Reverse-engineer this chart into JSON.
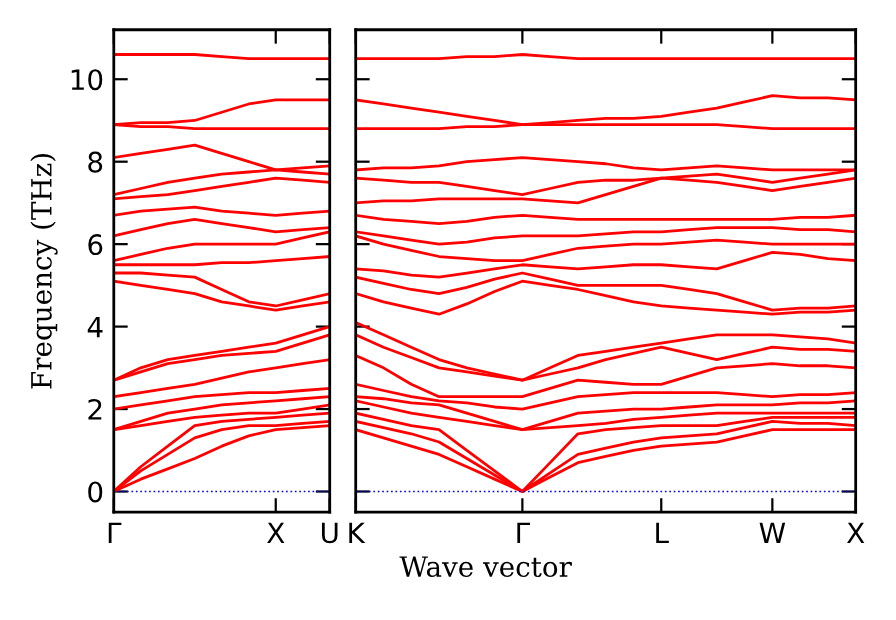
{
  "chart_data": [
    {
      "type": "line",
      "ylabel": "Frequency (THz)",
      "categories": [
        "Γ",
        null,
        null,
        null,
        null,
        null,
        "X",
        null,
        "U"
      ],
      "ylim": [
        -0.5,
        11.2
      ],
      "yticks": [
        0,
        2,
        4,
        6,
        8,
        10
      ],
      "grid": false,
      "marker": "none",
      "line_style": "solid",
      "ref_lines": [
        {
          "axis": "y",
          "value": 0,
          "color": "#0000ff",
          "line_style": "dotted"
        }
      ],
      "series": [
        {
          "color": "#ff0000",
          "values": [
            0,
            0.3,
            0.55,
            0.8,
            1.1,
            1.35,
            1.5,
            1.55,
            1.6
          ]
        },
        {
          "color": "#ff0000",
          "values": [
            0,
            0.5,
            0.9,
            1.3,
            1.5,
            1.6,
            1.6,
            1.65,
            1.7
          ]
        },
        {
          "color": "#ff0000",
          "values": [
            0,
            0.6,
            1.1,
            1.6,
            1.7,
            1.75,
            1.8,
            1.85,
            1.9
          ]
        },
        {
          "color": "#ff0000",
          "values": [
            1.5,
            1.6,
            1.7,
            1.8,
            1.85,
            1.9,
            1.9,
            2.0,
            2.1
          ]
        },
        {
          "color": "#ff0000",
          "values": [
            1.5,
            1.7,
            1.9,
            2.0,
            2.1,
            2.15,
            2.2,
            2.25,
            2.3
          ]
        },
        {
          "color": "#ff0000",
          "values": [
            2.0,
            2.1,
            2.2,
            2.3,
            2.35,
            2.4,
            2.4,
            2.45,
            2.5
          ]
        },
        {
          "color": "#ff0000",
          "values": [
            2.3,
            2.4,
            2.5,
            2.6,
            2.75,
            2.9,
            3.0,
            3.1,
            3.2
          ]
        },
        {
          "color": "#ff0000",
          "values": [
            2.7,
            2.9,
            3.1,
            3.2,
            3.3,
            3.35,
            3.4,
            3.6,
            3.8
          ]
        },
        {
          "color": "#ff0000",
          "values": [
            2.7,
            3.0,
            3.2,
            3.3,
            3.4,
            3.5,
            3.6,
            3.8,
            4.0
          ]
        },
        {
          "color": "#ff0000",
          "values": [
            5.1,
            5.0,
            4.9,
            4.8,
            4.6,
            4.5,
            4.4,
            4.5,
            4.6
          ]
        },
        {
          "color": "#ff0000",
          "values": [
            5.3,
            5.3,
            5.25,
            5.2,
            4.9,
            4.6,
            4.5,
            4.65,
            4.8
          ]
        },
        {
          "color": "#ff0000",
          "values": [
            5.5,
            5.5,
            5.5,
            5.5,
            5.55,
            5.55,
            5.6,
            5.65,
            5.7
          ]
        },
        {
          "color": "#ff0000",
          "values": [
            5.6,
            5.75,
            5.9,
            6.0,
            6.0,
            6.0,
            6.0,
            6.15,
            6.3
          ]
        },
        {
          "color": "#ff0000",
          "values": [
            6.2,
            6.35,
            6.5,
            6.6,
            6.5,
            6.4,
            6.3,
            6.35,
            6.4
          ]
        },
        {
          "color": "#ff0000",
          "values": [
            6.7,
            6.8,
            6.85,
            6.9,
            6.8,
            6.75,
            6.7,
            6.75,
            6.8
          ]
        },
        {
          "color": "#ff0000",
          "values": [
            7.1,
            7.15,
            7.2,
            7.3,
            7.4,
            7.5,
            7.6,
            7.55,
            7.5
          ]
        },
        {
          "color": "#ff0000",
          "values": [
            7.2,
            7.35,
            7.5,
            7.6,
            7.7,
            7.75,
            7.8,
            7.75,
            7.7
          ]
        },
        {
          "color": "#ff0000",
          "values": [
            8.1,
            8.2,
            8.3,
            8.4,
            8.2,
            8.0,
            7.8,
            7.85,
            7.9
          ]
        },
        {
          "color": "#ff0000",
          "values": [
            8.9,
            8.85,
            8.85,
            8.8,
            8.8,
            8.8,
            8.8,
            8.8,
            8.8
          ]
        },
        {
          "color": "#ff0000",
          "values": [
            8.9,
            8.95,
            8.95,
            9.0,
            9.2,
            9.4,
            9.5,
            9.5,
            9.5
          ]
        },
        {
          "color": "#ff0000",
          "values": [
            10.6,
            10.6,
            10.6,
            10.6,
            10.55,
            10.5,
            10.5,
            10.5,
            10.5
          ]
        }
      ]
    },
    {
      "type": "line",
      "xlabel": "Wave vector",
      "categories": [
        "K",
        null,
        null,
        null,
        null,
        null,
        "Γ",
        null,
        null,
        null,
        null,
        "L",
        null,
        null,
        null,
        "W",
        null,
        null,
        "X"
      ],
      "ylim": [
        -0.5,
        11.2
      ],
      "yticks": [
        0,
        2,
        4,
        6,
        8,
        10
      ],
      "tick_labels": "x",
      "grid": false,
      "marker": "none",
      "line_style": "solid",
      "ref_lines": [
        {
          "axis": "y",
          "value": 0,
          "color": "#0000ff",
          "line_style": "dotted"
        }
      ],
      "series": [
        {
          "color": "#ff0000",
          "values": [
            1.5,
            1.3,
            1.1,
            0.9,
            0.6,
            0.3,
            0,
            0.35,
            0.7,
            0.85,
            1.0,
            1.1,
            1.15,
            1.2,
            1.35,
            1.5,
            1.5,
            1.5,
            1.5
          ]
        },
        {
          "color": "#ff0000",
          "values": [
            1.7,
            1.55,
            1.4,
            1.2,
            0.8,
            0.4,
            0,
            0.45,
            0.9,
            1.05,
            1.2,
            1.3,
            1.35,
            1.4,
            1.55,
            1.7,
            1.65,
            1.65,
            1.6
          ]
        },
        {
          "color": "#ff0000",
          "values": [
            1.9,
            1.75,
            1.6,
            1.5,
            1.0,
            0.5,
            0,
            0.7,
            1.4,
            1.5,
            1.55,
            1.6,
            1.6,
            1.6,
            1.7,
            1.8,
            1.8,
            1.8,
            1.8
          ]
        },
        {
          "color": "#ff0000",
          "values": [
            2.2,
            2.05,
            1.9,
            1.8,
            1.7,
            1.6,
            1.5,
            1.55,
            1.6,
            1.65,
            1.75,
            1.8,
            1.85,
            1.9,
            1.9,
            1.9,
            1.9,
            1.9,
            1.9
          ]
        },
        {
          "color": "#ff0000",
          "values": [
            2.3,
            2.25,
            2.15,
            2.1,
            1.9,
            1.7,
            1.5,
            1.7,
            1.9,
            1.95,
            2.0,
            2.0,
            2.05,
            2.1,
            2.1,
            2.1,
            2.15,
            2.15,
            2.2
          ]
        },
        {
          "color": "#ff0000",
          "values": [
            2.6,
            2.45,
            2.3,
            2.2,
            2.15,
            2.05,
            2.0,
            2.15,
            2.3,
            2.35,
            2.4,
            2.4,
            2.4,
            2.4,
            2.35,
            2.3,
            2.35,
            2.35,
            2.4
          ]
        },
        {
          "color": "#ff0000",
          "values": [
            3.3,
            3.0,
            2.6,
            2.3,
            2.3,
            2.3,
            2.3,
            2.5,
            2.7,
            2.65,
            2.6,
            2.6,
            2.8,
            3.0,
            3.05,
            3.1,
            3.05,
            3.05,
            3.0
          ]
        },
        {
          "color": "#ff0000",
          "values": [
            3.8,
            3.5,
            3.25,
            3.0,
            2.9,
            2.8,
            2.7,
            2.85,
            3.0,
            3.2,
            3.35,
            3.5,
            3.35,
            3.2,
            3.35,
            3.5,
            3.45,
            3.45,
            3.4
          ]
        },
        {
          "color": "#ff0000",
          "values": [
            4.1,
            3.8,
            3.5,
            3.2,
            3.0,
            2.85,
            2.7,
            3.0,
            3.3,
            3.4,
            3.5,
            3.6,
            3.7,
            3.8,
            3.8,
            3.8,
            3.75,
            3.7,
            3.6
          ]
        },
        {
          "color": "#ff0000",
          "values": [
            4.8,
            4.6,
            4.45,
            4.3,
            4.55,
            4.85,
            5.1,
            5.0,
            4.9,
            4.75,
            4.6,
            4.5,
            4.45,
            4.4,
            4.35,
            4.3,
            4.35,
            4.35,
            4.4
          ]
        },
        {
          "color": "#ff0000",
          "values": [
            5.2,
            5.05,
            4.9,
            4.8,
            4.95,
            5.15,
            5.3,
            5.15,
            5.0,
            5.0,
            5.0,
            5.0,
            4.9,
            4.8,
            4.6,
            4.4,
            4.45,
            4.45,
            4.5
          ]
        },
        {
          "color": "#ff0000",
          "values": [
            5.4,
            5.35,
            5.25,
            5.2,
            5.3,
            5.4,
            5.5,
            5.45,
            5.4,
            5.45,
            5.5,
            5.5,
            5.45,
            5.4,
            5.6,
            5.8,
            5.75,
            5.65,
            5.6
          ]
        },
        {
          "color": "#ff0000",
          "values": [
            6.2,
            6.0,
            5.85,
            5.7,
            5.65,
            5.6,
            5.6,
            5.75,
            5.9,
            5.95,
            6.0,
            6.0,
            6.05,
            6.1,
            6.05,
            6.0,
            6.0,
            6.0,
            6.0
          ]
        },
        {
          "color": "#ff0000",
          "values": [
            6.3,
            6.2,
            6.1,
            6.0,
            6.05,
            6.15,
            6.2,
            6.2,
            6.2,
            6.25,
            6.3,
            6.3,
            6.35,
            6.4,
            6.4,
            6.4,
            6.35,
            6.35,
            6.3
          ]
        },
        {
          "color": "#ff0000",
          "values": [
            6.7,
            6.6,
            6.55,
            6.5,
            6.55,
            6.65,
            6.7,
            6.65,
            6.6,
            6.6,
            6.6,
            6.6,
            6.6,
            6.6,
            6.6,
            6.6,
            6.65,
            6.65,
            6.7
          ]
        },
        {
          "color": "#ff0000",
          "values": [
            7.0,
            7.05,
            7.05,
            7.1,
            7.1,
            7.1,
            7.1,
            7.05,
            7.0,
            7.2,
            7.4,
            7.6,
            7.55,
            7.5,
            7.4,
            7.3,
            7.4,
            7.5,
            7.6
          ]
        },
        {
          "color": "#ff0000",
          "values": [
            7.6,
            7.55,
            7.5,
            7.5,
            7.4,
            7.3,
            7.2,
            7.35,
            7.5,
            7.55,
            7.55,
            7.6,
            7.65,
            7.7,
            7.6,
            7.5,
            7.6,
            7.7,
            7.8
          ]
        },
        {
          "color": "#ff0000",
          "values": [
            7.8,
            7.85,
            7.85,
            7.9,
            8.0,
            8.05,
            8.1,
            8.05,
            8.0,
            7.95,
            7.85,
            7.8,
            7.85,
            7.9,
            7.85,
            7.8,
            7.8,
            7.8,
            7.8
          ]
        },
        {
          "color": "#ff0000",
          "values": [
            8.8,
            8.8,
            8.8,
            8.8,
            8.85,
            8.85,
            8.9,
            8.9,
            8.9,
            8.9,
            8.9,
            8.9,
            8.9,
            8.9,
            8.85,
            8.8,
            8.8,
            8.8,
            8.8
          ]
        },
        {
          "color": "#ff0000",
          "values": [
            9.5,
            9.4,
            9.3,
            9.2,
            9.1,
            9.0,
            8.9,
            8.95,
            9.0,
            9.05,
            9.05,
            9.1,
            9.2,
            9.3,
            9.45,
            9.6,
            9.55,
            9.55,
            9.5
          ]
        },
        {
          "color": "#ff0000",
          "values": [
            10.5,
            10.5,
            10.5,
            10.5,
            10.55,
            10.55,
            10.6,
            10.55,
            10.5,
            10.5,
            10.5,
            10.5,
            10.5,
            10.5,
            10.5,
            10.5,
            10.5,
            10.5,
            10.5
          ]
        }
      ]
    }
  ]
}
